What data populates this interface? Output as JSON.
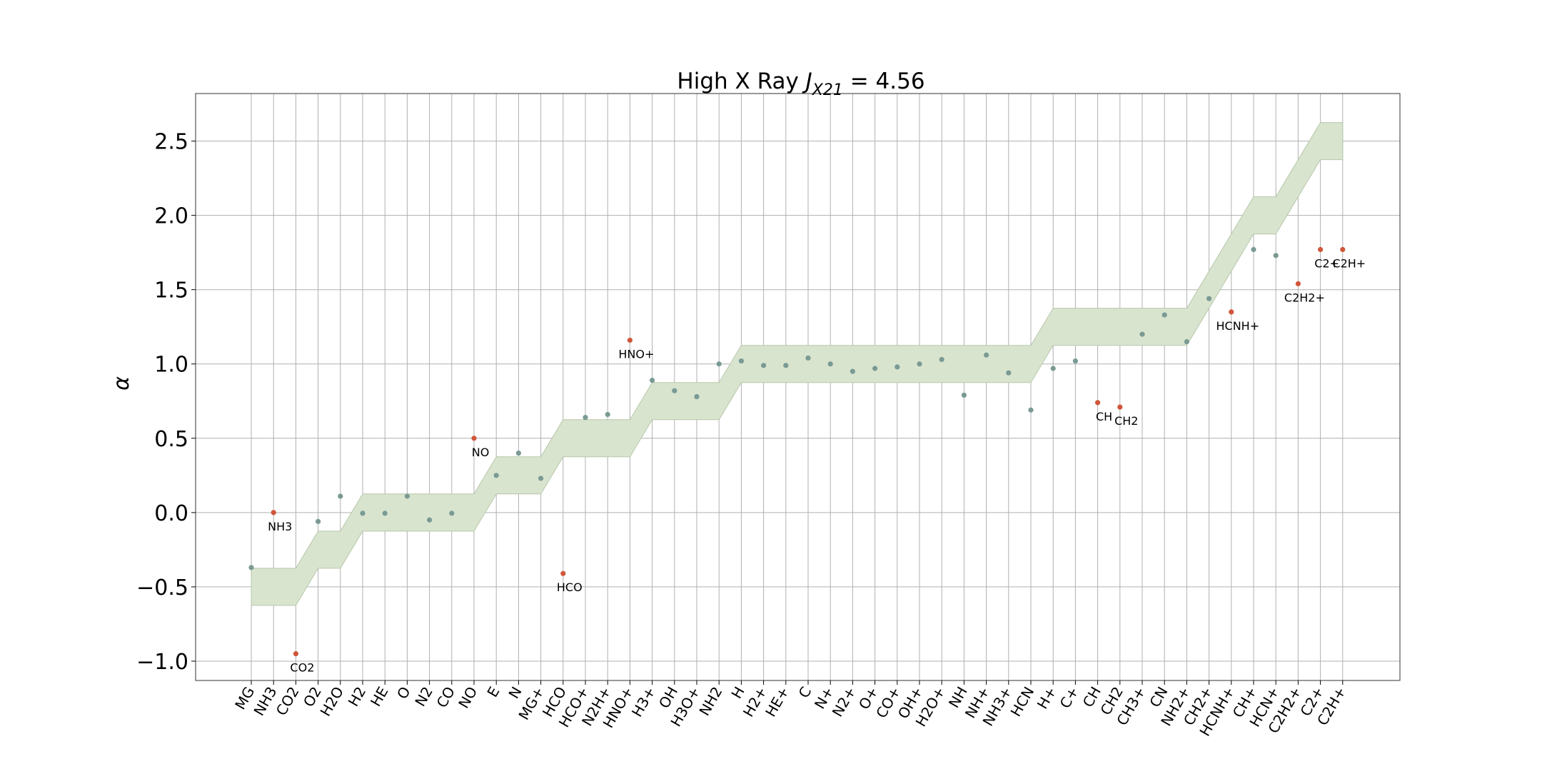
{
  "chart_data": {
    "type": "scatter",
    "title_prefix": "High X Ray ",
    "title_math_var": "J",
    "title_math_sub": "X21",
    "title_math_rest": " = 4.56",
    "xlabel": "",
    "ylabel": "α",
    "ylim": [
      -1.13,
      2.82
    ],
    "yticks": [
      -1.0,
      -0.5,
      0.0,
      0.5,
      1.0,
      1.5,
      2.0,
      2.5
    ],
    "ytick_labels": [
      "−1.0",
      "−0.5",
      "0.0",
      "0.5",
      "1.0",
      "1.5",
      "2.0",
      "2.5"
    ],
    "grid": true,
    "band_half_width": 0.125,
    "colors": {
      "normal_point": "#7a9a94",
      "outlier_point": "#d0563a",
      "band_fill": "#d9e4cf",
      "band_edge": "#b7c7aa",
      "grid": "#b0b0b0",
      "axis": "#555555"
    },
    "categories": [
      "MG",
      "NH3",
      "CO2",
      "O2",
      "H2O",
      "H2",
      "HE",
      "O",
      "N2",
      "CO",
      "NO",
      "E",
      "N",
      "MG+",
      "HCO",
      "HCO+",
      "N2H+",
      "HNO+",
      "H3+",
      "OH",
      "H3O+",
      "NH2",
      "H",
      "H2+",
      "HE+",
      "C",
      "N+",
      "N2+",
      "O+",
      "CO+",
      "OH+",
      "H2O+",
      "NH",
      "NH+",
      "NH3+",
      "HCN",
      "H+",
      "C+",
      "CH",
      "CH2",
      "CH3+",
      "CN",
      "NH2+",
      "CH2+",
      "HCNH+",
      "CH+",
      "HCN+",
      "C2H2+",
      "C2+",
      "C2H+"
    ],
    "expected": [
      -0.5,
      -0.5,
      -0.5,
      -0.25,
      -0.25,
      0,
      0,
      0,
      0,
      0,
      0,
      0.25,
      0.25,
      0.25,
      0.5,
      0.5,
      0.5,
      0.5,
      0.75,
      0.75,
      0.75,
      0.75,
      1,
      1,
      1,
      1,
      1,
      1,
      1,
      1,
      1,
      1,
      1,
      1,
      1,
      1,
      1.25,
      1.25,
      1.25,
      1.25,
      1.25,
      1.25,
      1.25,
      1.5,
      1.75,
      2,
      2,
      2.25,
      2.5,
      2.5
    ],
    "values": [
      -0.37,
      0.0,
      -0.95,
      -0.06,
      0.11,
      -0.005,
      -0.005,
      0.11,
      -0.05,
      -0.005,
      0.5,
      0.25,
      0.4,
      0.23,
      -0.41,
      0.64,
      0.66,
      1.16,
      0.89,
      0.82,
      0.78,
      1.0,
      1.02,
      0.99,
      0.99,
      1.04,
      1.0,
      0.95,
      0.97,
      0.98,
      1.0,
      1.03,
      0.79,
      1.06,
      0.94,
      0.69,
      0.97,
      1.02,
      0.74,
      0.71,
      1.2,
      1.33,
      1.15,
      1.44,
      1.35,
      1.77,
      1.73,
      1.54,
      1.77,
      1.77
    ],
    "outliers": [
      {
        "name": "NH3",
        "label": "NH3"
      },
      {
        "name": "CO2",
        "label": "CO2"
      },
      {
        "name": "NO",
        "label": "NO"
      },
      {
        "name": "HCO",
        "label": "HCO"
      },
      {
        "name": "HNO+",
        "label": "HNO+"
      },
      {
        "name": "CH",
        "label": "CH"
      },
      {
        "name": "CH2",
        "label": "CH2"
      },
      {
        "name": "HCNH+",
        "label": "HCNH+"
      },
      {
        "name": "C2H2+",
        "label": "C2H2+"
      },
      {
        "name": "C2+",
        "label": "C2+"
      },
      {
        "name": "C2H+",
        "label": "C2H+"
      }
    ]
  }
}
